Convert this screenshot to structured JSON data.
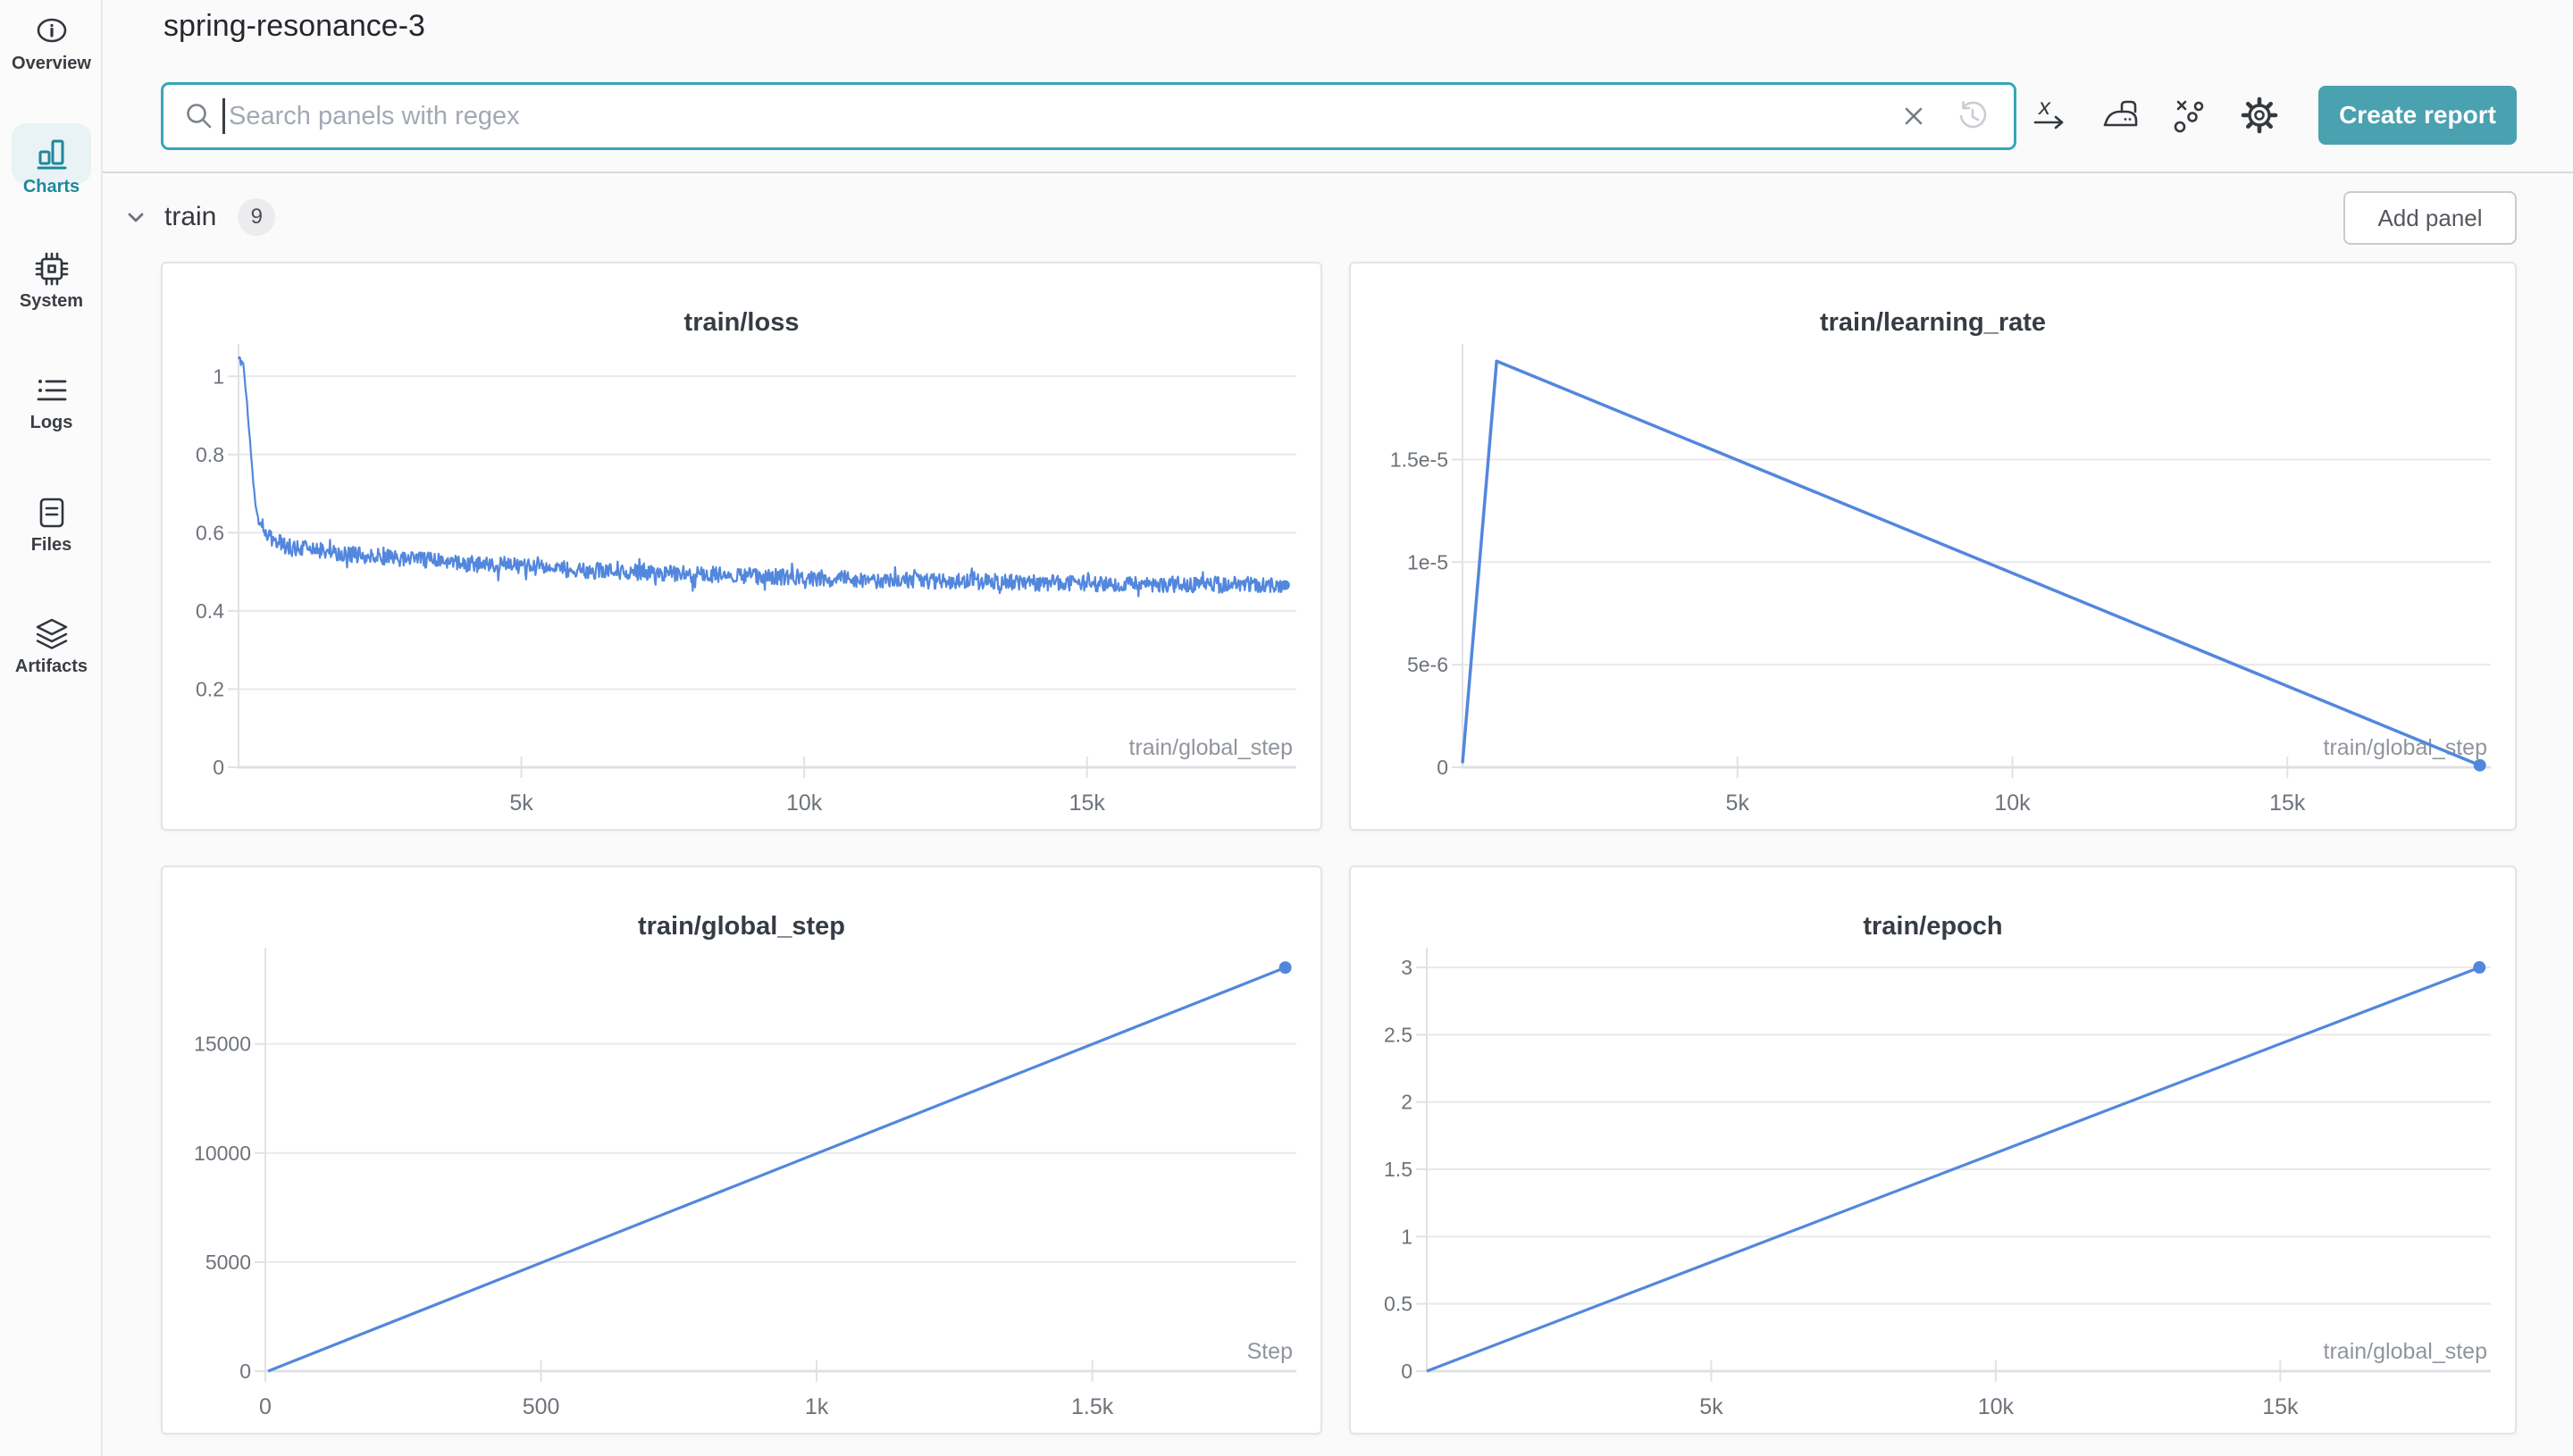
{
  "header": {
    "title": "spring-resonance-3"
  },
  "search": {
    "placeholder": "Search panels with regex",
    "value": ""
  },
  "toolbar": {
    "create_report_label": "Create report"
  },
  "sidebar": {
    "items": [
      {
        "label": "Overview",
        "icon": "info-icon",
        "active": false
      },
      {
        "label": "Charts",
        "icon": "bar-chart-icon",
        "active": true
      },
      {
        "label": "System",
        "icon": "cpu-icon",
        "active": false
      },
      {
        "label": "Logs",
        "icon": "list-icon",
        "active": false
      },
      {
        "label": "Files",
        "icon": "document-icon",
        "active": false
      },
      {
        "label": "Artifacts",
        "icon": "layers-icon",
        "active": false
      }
    ]
  },
  "section": {
    "name": "train",
    "count": "9",
    "add_panel_label": "Add panel"
  },
  "colors": {
    "accent_teal": "#37a6b9",
    "button_teal": "#4aa1b0",
    "active_nav_teal": "#1f879b",
    "line_blue": "#5387dd",
    "gridline": "#e9e9ec",
    "axis": "#e2e2e6",
    "axis_strong": "#dfe0e4",
    "tick_text": "#6e737b",
    "axis_label_text": "#90959d",
    "page_bg": "#fafafa"
  },
  "chart_data": [
    {
      "type": "line",
      "title": "train/loss",
      "xlabel": "train/global_step",
      "xlim": [
        0,
        18700
      ],
      "ylim": [
        0,
        1.06
      ],
      "xticks": [
        {
          "v": 5000,
          "label": "5k"
        },
        {
          "v": 10000,
          "label": "10k"
        },
        {
          "v": 15000,
          "label": "15k"
        }
      ],
      "yticks": [
        {
          "v": 0,
          "label": "0"
        },
        {
          "v": 0.2,
          "label": "0.2"
        },
        {
          "v": 0.4,
          "label": "0.4"
        },
        {
          "v": 0.6,
          "label": "0.6"
        },
        {
          "v": 0.8,
          "label": "0.8"
        },
        {
          "v": 1,
          "label": "1"
        }
      ],
      "series": [
        {
          "name": "spring-resonance-3",
          "color": "#5387dd",
          "width": 2.2,
          "anchors": [
            [
              0,
              1.05
            ],
            [
              80,
              1.035
            ],
            [
              150,
              0.93
            ],
            [
              220,
              0.8
            ],
            [
              300,
              0.665
            ],
            [
              360,
              0.625
            ],
            [
              420,
              0.615
            ],
            [
              500,
              0.6
            ],
            [
              600,
              0.585
            ],
            [
              800,
              0.568
            ],
            [
              1100,
              0.56
            ],
            [
              1500,
              0.552
            ],
            [
              2000,
              0.545
            ],
            [
              2500,
              0.538
            ],
            [
              3000,
              0.532
            ],
            [
              3500,
              0.527
            ],
            [
              4000,
              0.522
            ],
            [
              4500,
              0.518
            ],
            [
              5000,
              0.513
            ],
            [
              5500,
              0.509
            ],
            [
              6000,
              0.505
            ],
            [
              6500,
              0.502
            ],
            [
              7000,
              0.499
            ],
            [
              7500,
              0.497
            ],
            [
              8000,
              0.494
            ],
            [
              8500,
              0.492
            ],
            [
              9000,
              0.489
            ],
            [
              9500,
              0.487
            ],
            [
              10000,
              0.485
            ],
            [
              11000,
              0.481
            ],
            [
              12000,
              0.478
            ],
            [
              13000,
              0.475
            ],
            [
              14000,
              0.472
            ],
            [
              15000,
              0.47
            ],
            [
              16000,
              0.468
            ],
            [
              17000,
              0.467
            ],
            [
              18500,
              0.466
            ]
          ],
          "noise": {
            "seed": 987654321,
            "points": 1350,
            "amplitude": 0.021,
            "start_amplitude": 0.007,
            "start_x": 400,
            "spike_prob": 0.05,
            "spike_amplitude": 0.028
          },
          "end_dot": true,
          "dot_r": 5.5
        }
      ]
    },
    {
      "type": "line",
      "title": "train/learning_rate",
      "xlabel": "train/global_step",
      "xlim": [
        0,
        18700
      ],
      "ylim": [
        0,
        2.02e-05
      ],
      "xticks": [
        {
          "v": 5000,
          "label": "5k"
        },
        {
          "v": 10000,
          "label": "10k"
        },
        {
          "v": 15000,
          "label": "15k"
        }
      ],
      "yticks": [
        {
          "v": 0,
          "label": "0"
        },
        {
          "v": 5e-06,
          "label": "5e-6"
        },
        {
          "v": 1e-05,
          "label": "1e-5"
        },
        {
          "v": 1.5e-05,
          "label": "1.5e-5"
        }
      ],
      "series": [
        {
          "name": "spring-resonance-3",
          "color": "#5387dd",
          "width": 3.5,
          "anchors": [
            [
              0,
              2e-07
            ],
            [
              620,
              1.98e-05
            ],
            [
              18500,
              1e-07
            ]
          ],
          "end_dot": true,
          "dot_r": 7
        }
      ]
    },
    {
      "type": "line",
      "title": "train/global_step",
      "xlabel": "Step",
      "xlim": [
        0,
        1870
      ],
      "ylim": [
        0,
        19000
      ],
      "xticks": [
        {
          "v": 0,
          "label": "0"
        },
        {
          "v": 500,
          "label": "500"
        },
        {
          "v": 1000,
          "label": "1k"
        },
        {
          "v": 1500,
          "label": "1.5k"
        }
      ],
      "yticks": [
        {
          "v": 0,
          "label": "0"
        },
        {
          "v": 5000,
          "label": "5000"
        },
        {
          "v": 10000,
          "label": "10000"
        },
        {
          "v": 15000,
          "label": "15000"
        }
      ],
      "series": [
        {
          "name": "spring-resonance-3",
          "color": "#5387dd",
          "width": 3.2,
          "anchors": [
            [
              5,
              0
            ],
            [
              1850,
              18500
            ]
          ],
          "end_dot": true,
          "dot_r": 7
        }
      ]
    },
    {
      "type": "line",
      "title": "train/epoch",
      "xlabel": "train/global_step",
      "xlim": [
        0,
        18700
      ],
      "ylim": [
        0,
        3.08
      ],
      "xticks": [
        {
          "v": 5000,
          "label": "5k"
        },
        {
          "v": 10000,
          "label": "10k"
        },
        {
          "v": 15000,
          "label": "15k"
        }
      ],
      "yticks": [
        {
          "v": 0,
          "label": "0"
        },
        {
          "v": 0.5,
          "label": "0.5"
        },
        {
          "v": 1,
          "label": "1"
        },
        {
          "v": 1.5,
          "label": "1.5"
        },
        {
          "v": 2,
          "label": "2"
        },
        {
          "v": 2.5,
          "label": "2.5"
        },
        {
          "v": 3,
          "label": "3"
        }
      ],
      "series": [
        {
          "name": "spring-resonance-3",
          "color": "#5387dd",
          "width": 3.2,
          "anchors": [
            [
              0,
              0
            ],
            [
              18500,
              3
            ]
          ],
          "end_dot": true,
          "dot_r": 7
        }
      ]
    }
  ]
}
